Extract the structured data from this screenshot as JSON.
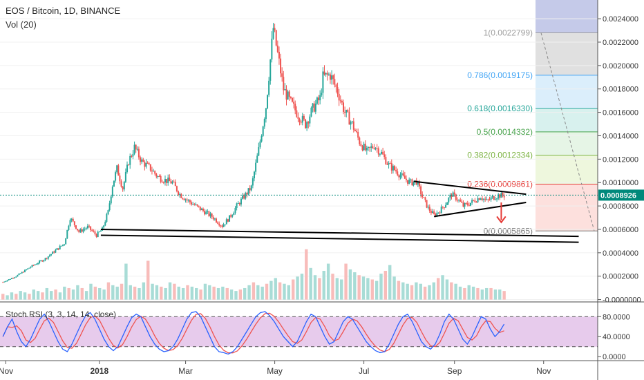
{
  "chart_data": {
    "type": "candlestick",
    "title": "EOS / Bitcoin, 1D, BINANCE",
    "volume_label": "Vol (20)",
    "oscillator_label": "Stoch RSI (3, 3, 14, 14, close)",
    "price_axis": {
      "ticks": [
        "0.0024000",
        "0.0022000",
        "0.0020000",
        "0.0018000",
        "0.0016000",
        "0.0014000",
        "0.0012000",
        "0.0010000",
        "0.0008000",
        "0.0006000",
        "0.0004000",
        "0.0002000",
        "-0.0000000"
      ],
      "ylim": [
        -2e-05,
        0.00256
      ]
    },
    "oscillator_axis": {
      "ticks": [
        "80.0000",
        "40.0000",
        "0.0000"
      ],
      "ylim": [
        -8,
        108
      ],
      "bands": [
        80,
        20
      ]
    },
    "x_axis": {
      "ticks": [
        "Nov",
        "2018",
        "Mar",
        "May",
        "Jul",
        "Sep",
        "Nov"
      ],
      "range": [
        "2017-10-25",
        "2018-12-08"
      ]
    },
    "last_price": {
      "value": 0.0008926,
      "label": "0.0008926",
      "color": "#00897b"
    },
    "colors": {
      "up": "#26a69a",
      "down": "#ef5350",
      "k_line": "#2962ff",
      "d_line": "#ef5350",
      "osc_bg": "#e1bee7"
    },
    "price_series": {
      "name": "close",
      "points": [
        [
          "2017-10-27",
          0.00015
        ],
        [
          "2017-11-05",
          0.0002
        ],
        [
          "2017-11-15",
          0.00028
        ],
        [
          "2017-11-25",
          0.00035
        ],
        [
          "2017-12-02",
          0.00042
        ],
        [
          "2017-12-08",
          0.00048
        ],
        [
          "2017-12-12",
          0.0007
        ],
        [
          "2017-12-18",
          0.00058
        ],
        [
          "2017-12-24",
          0.00062
        ],
        [
          "2017-12-30",
          0.00055
        ],
        [
          "2018-01-03",
          0.0006
        ],
        [
          "2018-01-07",
          0.00075
        ],
        [
          "2018-01-10",
          0.00098
        ],
        [
          "2018-01-13",
          0.00112
        ],
        [
          "2018-01-17",
          0.00095
        ],
        [
          "2018-01-21",
          0.00118
        ],
        [
          "2018-01-25",
          0.0013
        ],
        [
          "2018-01-30",
          0.00118
        ],
        [
          "2018-02-05",
          0.00112
        ],
        [
          "2018-02-10",
          0.00105
        ],
        [
          "2018-02-15",
          0.00102
        ],
        [
          "2018-02-20",
          0.001
        ],
        [
          "2018-02-25",
          0.0009
        ],
        [
          "2018-03-02",
          0.00085
        ],
        [
          "2018-03-08",
          0.0008
        ],
        [
          "2018-03-14",
          0.00075
        ],
        [
          "2018-03-20",
          0.0007
        ],
        [
          "2018-03-26",
          0.00063
        ],
        [
          "2018-03-31",
          0.0007
        ],
        [
          "2018-04-05",
          0.0008
        ],
        [
          "2018-04-10",
          0.00088
        ],
        [
          "2018-04-15",
          0.00096
        ],
        [
          "2018-04-20",
          0.00128
        ],
        [
          "2018-04-25",
          0.00165
        ],
        [
          "2018-04-28",
          0.00205
        ],
        [
          "2018-04-30",
          0.00232
        ],
        [
          "2018-05-03",
          0.0021
        ],
        [
          "2018-05-07",
          0.0018
        ],
        [
          "2018-05-12",
          0.00168
        ],
        [
          "2018-05-17",
          0.00158
        ],
        [
          "2018-05-22",
          0.0015
        ],
        [
          "2018-05-27",
          0.00163
        ],
        [
          "2018-06-01",
          0.00172
        ],
        [
          "2018-06-03",
          0.0019
        ],
        [
          "2018-06-08",
          0.00192
        ],
        [
          "2018-06-13",
          0.00178
        ],
        [
          "2018-06-18",
          0.0016
        ],
        [
          "2018-06-23",
          0.0015
        ],
        [
          "2018-06-28",
          0.00135
        ],
        [
          "2018-07-03",
          0.00126
        ],
        [
          "2018-07-08",
          0.00132
        ],
        [
          "2018-07-13",
          0.00125
        ],
        [
          "2018-07-18",
          0.00115
        ],
        [
          "2018-07-23",
          0.0011
        ],
        [
          "2018-07-28",
          0.00104
        ],
        [
          "2018-08-02",
          0.001
        ],
        [
          "2018-08-06",
          0.00101
        ],
        [
          "2018-08-10",
          0.00088
        ],
        [
          "2018-08-14",
          0.00078
        ],
        [
          "2018-08-18",
          0.00072
        ],
        [
          "2018-08-22",
          0.00076
        ],
        [
          "2018-08-26",
          0.00082
        ],
        [
          "2018-08-30",
          0.0009
        ],
        [
          "2018-09-03",
          0.00086
        ],
        [
          "2018-09-07",
          0.0008
        ],
        [
          "2018-09-11",
          0.00082
        ],
        [
          "2018-09-15",
          0.00085
        ],
        [
          "2018-09-19",
          0.00088
        ],
        [
          "2018-09-23",
          0.00084
        ],
        [
          "2018-09-27",
          0.00087
        ],
        [
          "2018-10-01",
          0.00089
        ],
        [
          "2018-10-05",
          0.00089
        ]
      ]
    },
    "volume": [
      4e-05,
      3e-05,
      5e-05,
      4e-05,
      6e-05,
      5e-05,
      4e-05,
      7e-05,
      6e-05,
      5e-05,
      8e-05,
      6e-05,
      7e-05,
      5e-05,
      9e-05,
      8e-05,
      7e-05,
      0.0001,
      8e-05,
      6e-05,
      0.00011,
      9e-05,
      8e-05,
      7e-05,
      0.00012,
      0.0001,
      9e-05,
      0.00011,
      0.00025,
      0.0001,
      9e-05,
      8e-05,
      0.00012,
      0.00027,
      0.00011,
      0.0001,
      9e-05,
      8e-05,
      0.00012,
      0.00011,
      9e-05,
      8e-05,
      0.0001,
      9e-05,
      8e-05,
      7e-05,
      0.00011,
      0.0001,
      9e-05,
      8e-05,
      9e-05,
      8e-05,
      7e-05,
      6e-05,
      7e-05,
      8e-05,
      0.0001,
      0.00012,
      0.0001,
      9e-05,
      0.00011,
      0.00013,
      0.00015,
      0.00012,
      0.00011,
      0.0001,
      0.00014,
      0.00016,
      0.00018,
      0.00035,
      0.00022,
      0.00017,
      0.00015,
      0.0002,
      0.00025,
      0.00018,
      0.00015,
      0.00014,
      0.00025,
      0.00021,
      0.00019,
      0.00017,
      0.00016,
      0.00015,
      0.00014,
      0.00013,
      0.00018,
      0.0002,
      0.00024,
      0.00016,
      0.00013,
      0.00012,
      0.00011,
      0.0001,
      0.00012,
      0.00011,
      9e-05,
      0.0001,
      0.00012,
      0.00015,
      0.00017,
      0.00014,
      0.00012,
      0.00011,
      9e-05,
      8e-05,
      0.0001,
      9e-05,
      8e-05,
      7e-05,
      8e-05,
      8e-05,
      7e-05,
      7e-05,
      6e-05
    ],
    "stoch_k": [
      40,
      60,
      75,
      50,
      30,
      20,
      35,
      55,
      75,
      85,
      70,
      50,
      30,
      15,
      10,
      25,
      45,
      65,
      82,
      88,
      75,
      55,
      35,
      20,
      12,
      20,
      40,
      60,
      78,
      85,
      80,
      60,
      40,
      25,
      15,
      10,
      12,
      20,
      35,
      55,
      75,
      88,
      90,
      80,
      60,
      40,
      20,
      10,
      8,
      5,
      10,
      20,
      35,
      50,
      65,
      80,
      88,
      90,
      82,
      70,
      55,
      40,
      30,
      20,
      30,
      50,
      70,
      85,
      80,
      60,
      40,
      25,
      30,
      50,
      70,
      80,
      75,
      60,
      45,
      30,
      20,
      12,
      8,
      10,
      25,
      45,
      65,
      80,
      85,
      70,
      50,
      30,
      20,
      15,
      25,
      45,
      70,
      85,
      75,
      55,
      35,
      25,
      40,
      60,
      80,
      75,
      55,
      40,
      50,
      65
    ],
    "price_levels": [
      {
        "value": 0.0006,
        "color": "#000000"
      },
      {
        "value": 0.00055,
        "color": "#000000"
      }
    ],
    "fibonacci": [
      {
        "label": "1(0.0022799)",
        "value": 0.0022799,
        "color": "#9e9e9e",
        "fill": "#e0e0e0"
      },
      {
        "label": "0.786(0.0019175)",
        "value": 0.0019175,
        "color": "#42a5f5",
        "fill": "#dbeefb"
      },
      {
        "label": "0.618(0.0016330)",
        "value": 0.001633,
        "color": "#26a69a",
        "fill": "#d8f1ee"
      },
      {
        "label": "0.5(0.0014332)",
        "value": 0.0014332,
        "color": "#43a047",
        "fill": "#e6f5e6"
      },
      {
        "label": "0.382(0.0012334)",
        "value": 0.0012334,
        "color": "#7cb342",
        "fill": "#eef7dd"
      },
      {
        "label": "0.236(0.0009861)",
        "value": 0.0009861,
        "color": "#e53935",
        "fill": "#fde0dd"
      },
      {
        "label": "0(0.0005865)",
        "value": 0.0005865,
        "color": "#757575",
        "fill": "#f8d7d7"
      }
    ]
  }
}
